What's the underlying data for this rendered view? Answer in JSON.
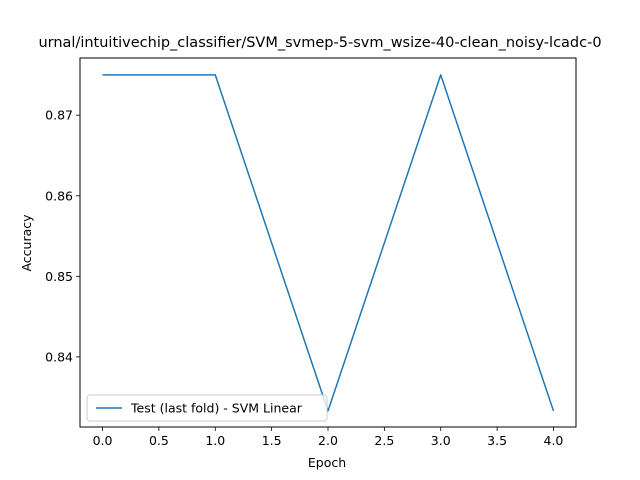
{
  "chart_data": {
    "type": "line",
    "title": "urnal/intuitivechip_classifier/SVM_svmep-5-svm_wsize-40-clean_noisy-lcadc-0",
    "xlabel": "Epoch",
    "ylabel": "Accuracy",
    "xlim": [
      -0.2,
      4.2
    ],
    "ylim": [
      0.8313,
      0.8771
    ],
    "x_ticks": [
      0.0,
      0.5,
      1.0,
      1.5,
      2.0,
      2.5,
      3.0,
      3.5,
      4.0
    ],
    "x_tick_labels": [
      "0.0",
      "0.5",
      "1.0",
      "1.5",
      "2.0",
      "2.5",
      "3.0",
      "3.5",
      "4.0"
    ],
    "y_ticks": [
      0.84,
      0.85,
      0.86,
      0.87
    ],
    "y_tick_labels": [
      "0.84",
      "0.85",
      "0.86",
      "0.87"
    ],
    "grid": false,
    "legend_position": "lower-left",
    "series": [
      {
        "name": "Test (last fold) - SVM Linear",
        "color": "#1f77b4",
        "x": [
          0,
          1,
          2,
          3,
          4
        ],
        "values": [
          0.875,
          0.875,
          0.8333,
          0.875,
          0.8333
        ]
      }
    ]
  }
}
